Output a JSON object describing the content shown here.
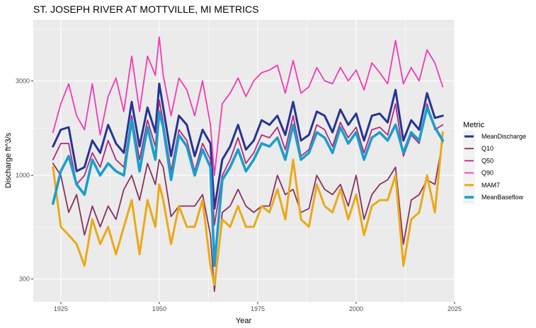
{
  "chart_data": {
    "type": "line",
    "title": "ST. JOSEPH RIVER AT MOTTVILLE, MI  METRICS",
    "xlabel": "Year",
    "ylabel": "Discharge ft^3/s",
    "y_scale": "log10",
    "xlim": [
      1918,
      2025
    ],
    "ylim": [
      230,
      6100
    ],
    "x_ticks": [
      1925,
      1950,
      1975,
      2000,
      2025
    ],
    "x_tick_labels": [
      "1925",
      "1950",
      "1975",
      "2000",
      "2025"
    ],
    "y_ticks": [
      300,
      1000,
      3000
    ],
    "y_tick_labels": [
      "300",
      "1000",
      "3000"
    ],
    "grid": true,
    "legend_title": "Metric",
    "legend_position": "right",
    "series": [
      {
        "name": "MeanDischarge",
        "color": "#253494",
        "width": 3,
        "x": [
          1923,
          1925,
          1927,
          1929,
          1931,
          1933,
          1935,
          1937,
          1939,
          1941,
          1943,
          1945,
          1947,
          1949,
          1950,
          1951,
          1953,
          1955,
          1957,
          1959,
          1961,
          1963,
          1964,
          1966,
          1968,
          1970,
          1972,
          1974,
          1976,
          1978,
          1980,
          1982,
          1984,
          1986,
          1988,
          1990,
          1992,
          1994,
          1996,
          1998,
          2000,
          2002,
          2004,
          2006,
          2008,
          2010,
          2012,
          2014,
          2016,
          2018,
          2020,
          2022
        ],
        "y": [
          1400,
          1700,
          1750,
          1050,
          1100,
          1500,
          1300,
          1800,
          1450,
          1300,
          2350,
          1400,
          2200,
          1650,
          2900,
          2200,
          1250,
          2000,
          1800,
          1250,
          1700,
          1450,
          680,
          1200,
          1400,
          1800,
          1350,
          1500,
          1900,
          1800,
          2000,
          1600,
          2350,
          1500,
          1600,
          2100,
          2000,
          1650,
          2150,
          1800,
          2050,
          1500,
          2000,
          2050,
          1850,
          2700,
          1500,
          1900,
          1700,
          2600,
          1950,
          2000
        ]
      },
      {
        "name": "Q10",
        "color": "#88305f",
        "width": 1.8,
        "x": [
          1923,
          1925,
          1927,
          1929,
          1931,
          1933,
          1935,
          1937,
          1939,
          1941,
          1943,
          1945,
          1947,
          1949,
          1950,
          1951,
          1953,
          1955,
          1957,
          1959,
          1961,
          1963,
          1964,
          1966,
          1968,
          1970,
          1972,
          1974,
          1976,
          1978,
          1980,
          1982,
          1984,
          1986,
          1988,
          1990,
          1992,
          1994,
          1996,
          1998,
          2000,
          2002,
          2004,
          2006,
          2008,
          2010,
          2012,
          2014,
          2016,
          2018,
          2020,
          2022
        ],
        "y": [
          1150,
          1000,
          650,
          800,
          500,
          700,
          550,
          700,
          600,
          850,
          1000,
          750,
          1150,
          900,
          1200,
          1100,
          620,
          700,
          700,
          700,
          800,
          500,
          260,
          650,
          700,
          850,
          700,
          650,
          700,
          700,
          1000,
          800,
          850,
          650,
          680,
          1000,
          850,
          800,
          900,
          700,
          1000,
          600,
          800,
          900,
          950,
          1100,
          450,
          750,
          800,
          950,
          900,
          1500
        ]
      },
      {
        "name": "Q50",
        "color": "#b2287b",
        "width": 1.8,
        "x": [
          1923,
          1925,
          1927,
          1929,
          1931,
          1933,
          1935,
          1937,
          1939,
          1941,
          1943,
          1945,
          1947,
          1949,
          1950,
          1951,
          1953,
          1955,
          1957,
          1959,
          1961,
          1963,
          1964,
          1966,
          1968,
          1970,
          1972,
          1974,
          1976,
          1978,
          1980,
          1982,
          1984,
          1986,
          1988,
          1990,
          1992,
          1994,
          1996,
          1998,
          2000,
          2002,
          2004,
          2006,
          2008,
          2010,
          2012,
          2014,
          2016,
          2018,
          2020,
          2022
        ],
        "y": [
          1200,
          1450,
          1450,
          900,
          1000,
          1300,
          1100,
          1500,
          1200,
          1100,
          2000,
          1200,
          1900,
          1400,
          2400,
          1850,
          1050,
          1700,
          1500,
          1050,
          1450,
          1200,
          560,
          1000,
          1200,
          1550,
          1150,
          1300,
          1600,
          1550,
          1750,
          1350,
          2000,
          1250,
          1350,
          1800,
          1700,
          1400,
          1850,
          1550,
          1750,
          1300,
          1700,
          1750,
          1600,
          2300,
          1250,
          1600,
          1450,
          2300,
          1700,
          1800
        ]
      },
      {
        "name": "Q90",
        "color": "#f03bb4",
        "width": 1.8,
        "x": [
          1923,
          1925,
          1927,
          1929,
          1931,
          1933,
          1935,
          1937,
          1939,
          1941,
          1943,
          1945,
          1947,
          1949,
          1950,
          1951,
          1953,
          1955,
          1957,
          1959,
          1961,
          1963,
          1964,
          1966,
          1968,
          1970,
          1972,
          1974,
          1976,
          1978,
          1980,
          1982,
          1984,
          1986,
          1988,
          1990,
          1992,
          1994,
          1996,
          1998,
          2000,
          2002,
          2004,
          2006,
          2008,
          2010,
          2012,
          2014,
          2016,
          2018,
          2020,
          2022
        ],
        "y": [
          1650,
          2300,
          2900,
          2000,
          1700,
          2900,
          1600,
          2500,
          3100,
          2100,
          4000,
          2100,
          4000,
          3200,
          5000,
          3200,
          2000,
          3100,
          2700,
          2000,
          3000,
          1800,
          1000,
          2300,
          2600,
          3100,
          2500,
          3000,
          3300,
          3400,
          3600,
          2600,
          3800,
          2600,
          2800,
          3500,
          3000,
          2900,
          3500,
          3000,
          3400,
          2700,
          3700,
          3300,
          2900,
          4800,
          2900,
          3500,
          3000,
          4300,
          3700,
          2800
        ]
      },
      {
        "name": "MAM7",
        "color": "#eaa918",
        "width": 3,
        "x": [
          1923,
          1925,
          1927,
          1929,
          1931,
          1933,
          1935,
          1937,
          1939,
          1941,
          1943,
          1945,
          1947,
          1949,
          1950,
          1951,
          1953,
          1955,
          1957,
          1959,
          1961,
          1963,
          1964,
          1966,
          1968,
          1970,
          1972,
          1974,
          1976,
          1978,
          1980,
          1982,
          1984,
          1986,
          1988,
          1990,
          1992,
          1994,
          1996,
          1998,
          2000,
          2002,
          2004,
          2006,
          2008,
          2010,
          2012,
          2014,
          2016,
          2018,
          2020,
          2022
        ],
        "y": [
          1100,
          550,
          500,
          450,
          350,
          600,
          450,
          550,
          400,
          550,
          750,
          400,
          750,
          550,
          900,
          750,
          450,
          700,
          550,
          550,
          750,
          350,
          280,
          600,
          550,
          700,
          550,
          550,
          700,
          650,
          850,
          600,
          1200,
          600,
          550,
          900,
          700,
          650,
          850,
          600,
          800,
          500,
          700,
          750,
          750,
          1000,
          350,
          600,
          650,
          1000,
          650,
          1650
        ]
      },
      {
        "name": "MeanBaseflow",
        "color": "#1a9ecb",
        "width": 3.6,
        "x": [
          1923,
          1925,
          1927,
          1929,
          1931,
          1933,
          1935,
          1937,
          1939,
          1941,
          1943,
          1945,
          1947,
          1949,
          1950,
          1951,
          1953,
          1955,
          1957,
          1959,
          1961,
          1963,
          1964,
          1966,
          1968,
          1970,
          1972,
          1974,
          1976,
          1978,
          1980,
          1982,
          1984,
          1986,
          1988,
          1990,
          1992,
          1994,
          1996,
          1998,
          2000,
          2002,
          2004,
          2006,
          2008,
          2010,
          2012,
          2014,
          2016,
          2018,
          2020,
          2022
        ],
        "y": [
          720,
          1050,
          1250,
          900,
          800,
          1200,
          1000,
          1150,
          1050,
          1000,
          1900,
          1050,
          1750,
          1200,
          2100,
          1750,
          950,
          1600,
          1400,
          1000,
          1350,
          1100,
          350,
          950,
          1100,
          1350,
          1050,
          1200,
          1450,
          1400,
          1550,
          1200,
          1800,
          1200,
          1300,
          1650,
          1550,
          1300,
          1750,
          1450,
          1650,
          1200,
          1550,
          1650,
          1500,
          1800,
          1300,
          1650,
          1500,
          2200,
          1750,
          1500
        ]
      }
    ]
  }
}
